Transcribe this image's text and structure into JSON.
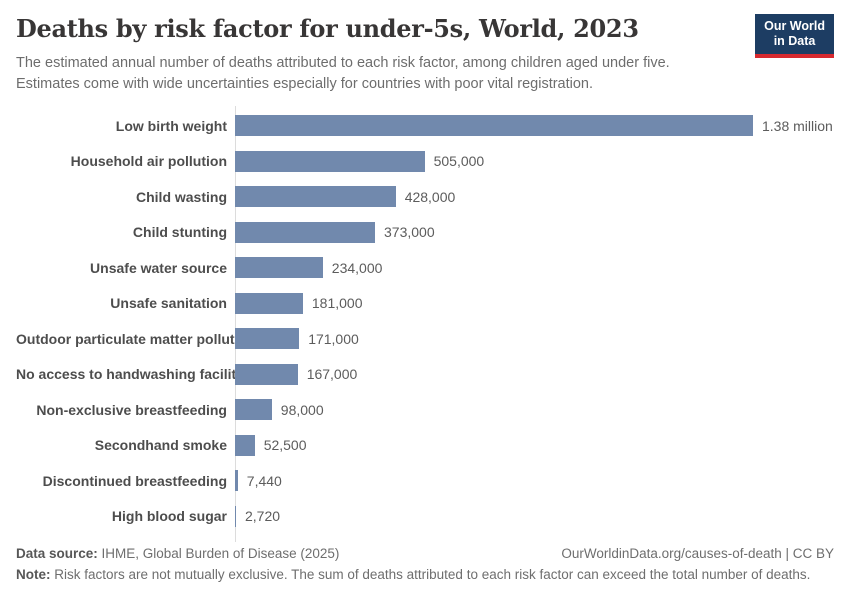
{
  "header": {
    "title": "Deaths by risk factor for under-5s, World, 2023",
    "subtitle_line1": "The estimated annual number of deaths attributed to each risk factor, among children aged under five.",
    "subtitle_line2": "Estimates come with wide uncertainties especially for countries with poor vital registration.",
    "logo": {
      "line1": "Our World",
      "line2": "in Data"
    }
  },
  "chart_data": {
    "type": "bar",
    "orientation": "horizontal",
    "title": "Deaths by risk factor for under-5s, World, 2023",
    "categories": [
      "Low birth weight",
      "Household air pollution",
      "Child wasting",
      "Child stunting",
      "Unsafe water source",
      "Unsafe sanitation",
      "Outdoor particulate matter pollution",
      "No access to handwashing facility",
      "Non-exclusive breastfeeding",
      "Secondhand smoke",
      "Discontinued breastfeeding",
      "High blood sugar"
    ],
    "values": [
      1380000,
      505000,
      428000,
      373000,
      234000,
      181000,
      171000,
      167000,
      98000,
      52500,
      7440,
      2720
    ],
    "value_labels": [
      "1.38 million",
      "505,000",
      "428,000",
      "373,000",
      "234,000",
      "181,000",
      "171,000",
      "167,000",
      "98,000",
      "52,500",
      "7,440",
      "2,720"
    ],
    "xlabel": "",
    "ylabel": "",
    "xlim": [
      0,
      1380000
    ],
    "grid": false,
    "legend": false,
    "bar_color": "#7189ad",
    "axis_color": "#dcdcdc"
  },
  "footer": {
    "source_label": "Data source:",
    "source_text": " IHME, Global Burden of Disease (2025)",
    "link_text": "OurWorldinData.org/causes-of-death | CC BY",
    "note_label": "Note:",
    "note_text": " Risk factors are not mutually exclusive. The sum of deaths attributed to each risk factor can exceed the total number of deaths."
  }
}
